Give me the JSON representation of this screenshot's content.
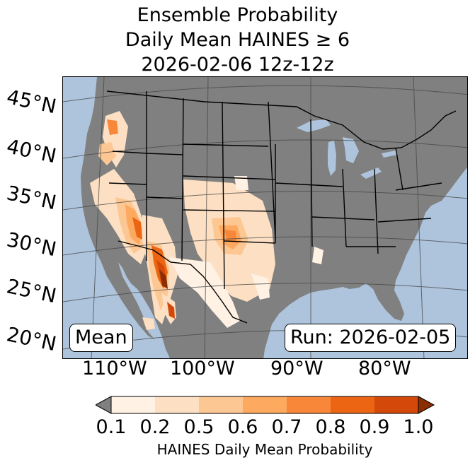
{
  "title": {
    "line1": "Ensemble Probability",
    "line2": "Daily Mean HAINES ≥ 6",
    "line3": "2026-02-06 12z-12z"
  },
  "map": {
    "lat_labels": [
      "45°N",
      "40°N",
      "35°N",
      "30°N",
      "25°N",
      "20°N"
    ],
    "lon_labels": [
      "110°W",
      "100°W",
      "90°W",
      "80°W"
    ],
    "stat_label": "Mean",
    "run_label": "Run: 2026-02-05",
    "colors": {
      "ocean": "#aec4dc",
      "land": "#808080",
      "lakes": "#aec4dc",
      "borders": "#000000",
      "graticule": "#444444"
    }
  },
  "colorbar": {
    "ticks": [
      "0.1",
      "0.2",
      "0.5",
      "0.6",
      "0.7",
      "0.8",
      "0.9",
      "1.0"
    ],
    "colors": [
      "#fff1e3",
      "#fde0c3",
      "#fdc793",
      "#fda95f",
      "#f8873a",
      "#ec6513",
      "#d4490a"
    ],
    "under_color": "#808080",
    "over_color": "#8b2f03",
    "label": "HAINES Daily Mean Probability"
  }
}
